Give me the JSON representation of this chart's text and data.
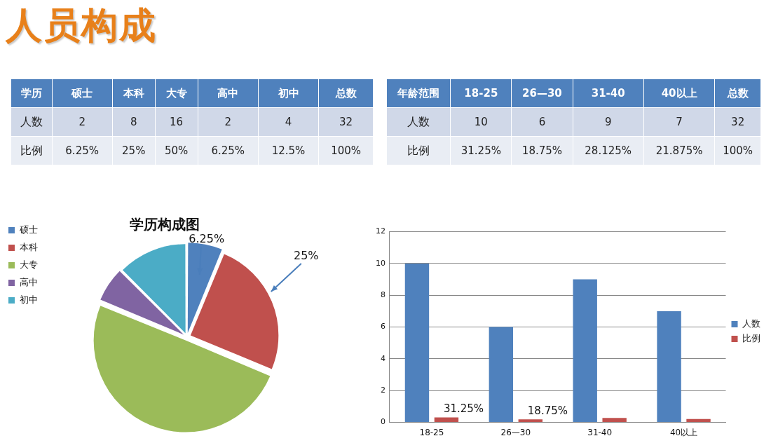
{
  "chart_data": [
    {
      "type": "other",
      "title": "人员构成"
    },
    {
      "type": "other",
      "ylabel": "学历",
      "categories": [
        "硕士",
        "本科",
        "大专",
        "高中",
        "初中",
        "总数"
      ],
      "y_categories": [
        "人数",
        "比例"
      ],
      "cell_labels": [
        [
          "2",
          "8",
          "16",
          "2",
          "4",
          "32"
        ],
        [
          "6.25%",
          "25%",
          "50%",
          "6.25%",
          "12.5%",
          "100%"
        ]
      ]
    },
    {
      "type": "other",
      "ylabel": "年龄范围",
      "categories": [
        "18-25",
        "26—30",
        "31-40",
        "40以上",
        "总数"
      ],
      "y_categories": [
        "人数",
        "比例"
      ],
      "cell_labels": [
        [
          "10",
          "6",
          "9",
          "7",
          "32"
        ],
        [
          "31.25%",
          "18.75%",
          "28.125%",
          "21.875%",
          "100%"
        ]
      ]
    },
    {
      "type": "pie",
      "title": "学历构成图",
      "categories": [
        "硕士",
        "本科",
        "大专",
        "高中",
        "初中"
      ],
      "values": [
        6.25,
        25,
        50,
        6.25,
        12.5
      ],
      "colors": [
        "#4f81bd",
        "#c0504d",
        "#9bbb59",
        "#8064a2",
        "#4bacc6"
      ],
      "legend": "left",
      "annotations": [
        "6.25%",
        "25%"
      ]
    },
    {
      "type": "bar",
      "categories": [
        "18-25",
        "26—30",
        "31-40",
        "40以上"
      ],
      "series": [
        {
          "name": "人数",
          "color": "#4f81bd",
          "values": [
            10,
            6,
            9,
            7
          ]
        },
        {
          "name": "比例",
          "color": "#c0504d",
          "values": [
            0.3125,
            0.1875,
            0.28125,
            0.21875
          ],
          "value_labels": [
            "31.25%",
            "18.75%",
            null,
            null
          ]
        }
      ],
      "ylim": [
        0,
        12
      ],
      "yticks": [
        0,
        2,
        4,
        6,
        8,
        10,
        12
      ],
      "grid": "y",
      "legend": "right"
    }
  ]
}
